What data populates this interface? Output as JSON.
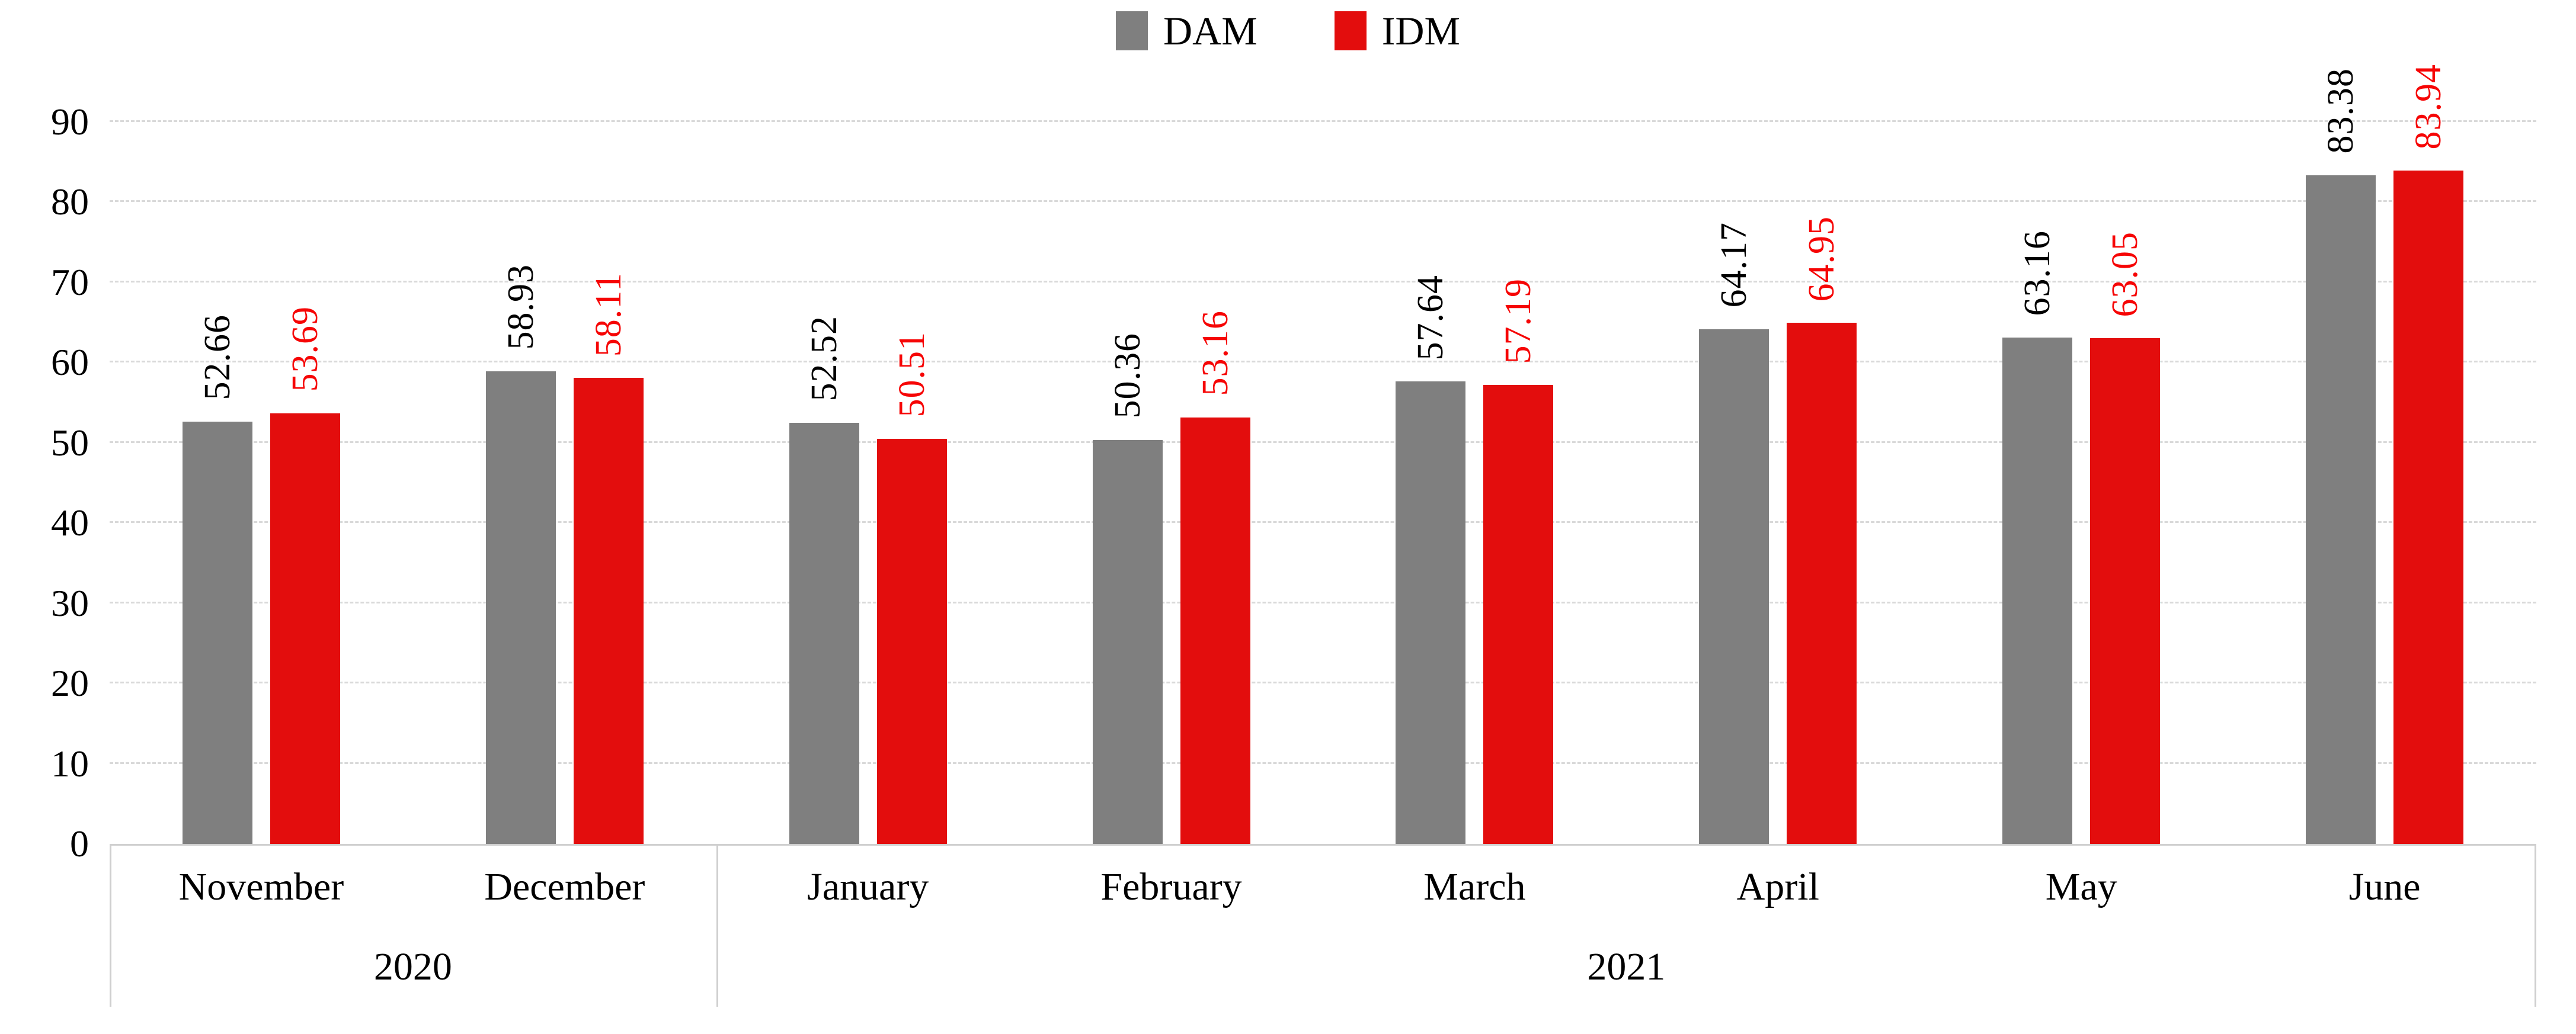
{
  "chart_data": {
    "type": "bar",
    "title": "",
    "xlabel": "",
    "ylabel": "",
    "legend_position": "top",
    "grid": true,
    "categories": [
      "November",
      "December",
      "January",
      "February",
      "March",
      "April",
      "May",
      "June"
    ],
    "series": [
      {
        "name": "DAM",
        "color": "#7f7f7f",
        "label_color": "#000000",
        "values": [
          52.66,
          58.93,
          52.52,
          50.36,
          57.64,
          64.17,
          63.16,
          83.38
        ],
        "labels": [
          "52.66",
          "58.93",
          "52.52",
          "50.36",
          "57.64",
          "64.17",
          "63.16",
          "83.38"
        ]
      },
      {
        "name": "IDM",
        "color": "#e30d0d",
        "label_color": "#f60505",
        "values": [
          53.69,
          58.11,
          50.51,
          53.16,
          57.19,
          64.95,
          63.05,
          83.94
        ],
        "labels": [
          "53.69",
          "58.11",
          "50.51",
          "53.16",
          "57.19",
          "64.95",
          "63.05",
          "83.94"
        ]
      }
    ],
    "y_axis": {
      "min": 0,
      "max": 90,
      "step": 10,
      "tick_labels": [
        "0",
        "10",
        "20",
        "30",
        "40",
        "50",
        "60",
        "70",
        "80",
        "90"
      ]
    },
    "x_axis": {
      "year_groups": [
        {
          "label": "2020",
          "span": 2
        },
        {
          "label": "2021",
          "span": 6
        }
      ]
    },
    "colors": {
      "gridline": "#d9d9d9",
      "axis_line": "#cfcfcf",
      "background": "#ffffff"
    }
  }
}
